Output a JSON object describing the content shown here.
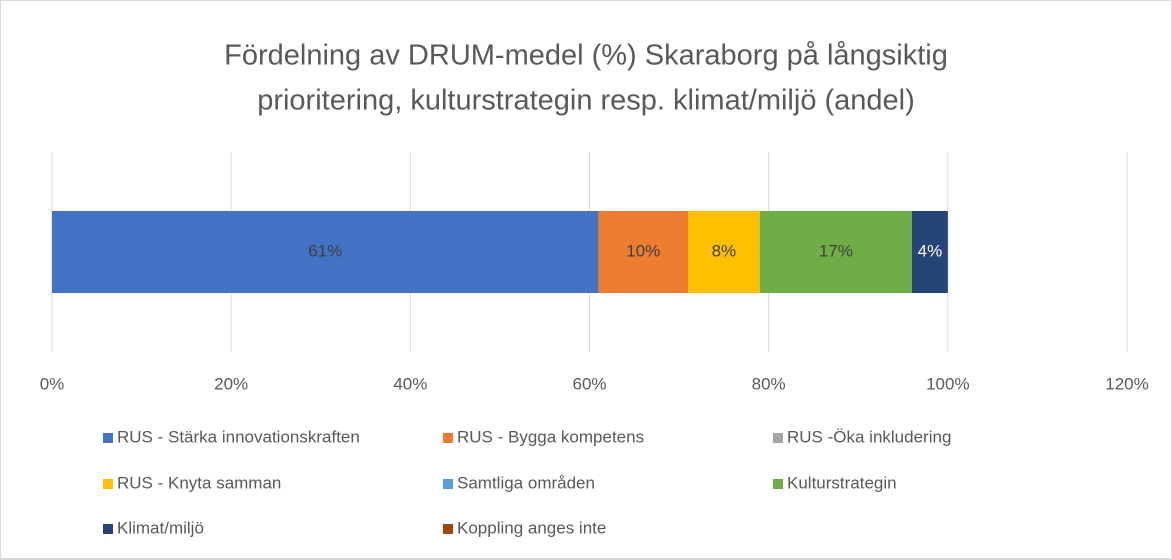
{
  "chart_data": {
    "type": "stacked-bar-horizontal",
    "title": [
      "Fördelning av DRUM-medel (%) Skaraborg på långsiktig",
      "prioritering, kulturstrategin resp. klimat/miljö (andel)"
    ],
    "categories": [
      null
    ],
    "series": [
      {
        "name": "RUS - Stärka innovationskraften",
        "color": "#4472c4",
        "values": [
          61
        ],
        "value_labels": [
          "61%"
        ]
      },
      {
        "name": "RUS - Bygga kompetens",
        "color": "#ed7d31",
        "values": [
          10
        ],
        "value_labels": [
          "10%"
        ]
      },
      {
        "name": "RUS -Öka inkludering",
        "color": "#a5a5a5",
        "values": [
          0
        ]
      },
      {
        "name": "RUS - Knyta samman",
        "color": "#ffc000",
        "values": [
          8
        ],
        "value_labels": [
          "8%"
        ]
      },
      {
        "name": "Samtliga områden",
        "color": "#5b9bd5",
        "values": [
          0
        ]
      },
      {
        "name": "Kulturstrategin",
        "color": "#70ad47",
        "values": [
          17
        ],
        "value_labels": [
          "17%"
        ]
      },
      {
        "name": "Klimat/miljö",
        "color": "#264478",
        "values": [
          4
        ],
        "value_labels": [
          "4%"
        ]
      },
      {
        "name": "Koppling anges inte",
        "color": "#9e480e",
        "values": [
          0
        ]
      }
    ],
    "xlim": [
      0,
      120
    ],
    "xticks": [
      {
        "value": 0,
        "label": "0%"
      },
      {
        "value": 20,
        "label": "20%"
      },
      {
        "value": 40,
        "label": "40%"
      },
      {
        "value": 60,
        "label": "60%"
      },
      {
        "value": 80,
        "label": "80%"
      },
      {
        "value": 100,
        "label": "100%"
      },
      {
        "value": 120,
        "label": "120%"
      }
    ],
    "grid": true,
    "legend": "bottom"
  }
}
